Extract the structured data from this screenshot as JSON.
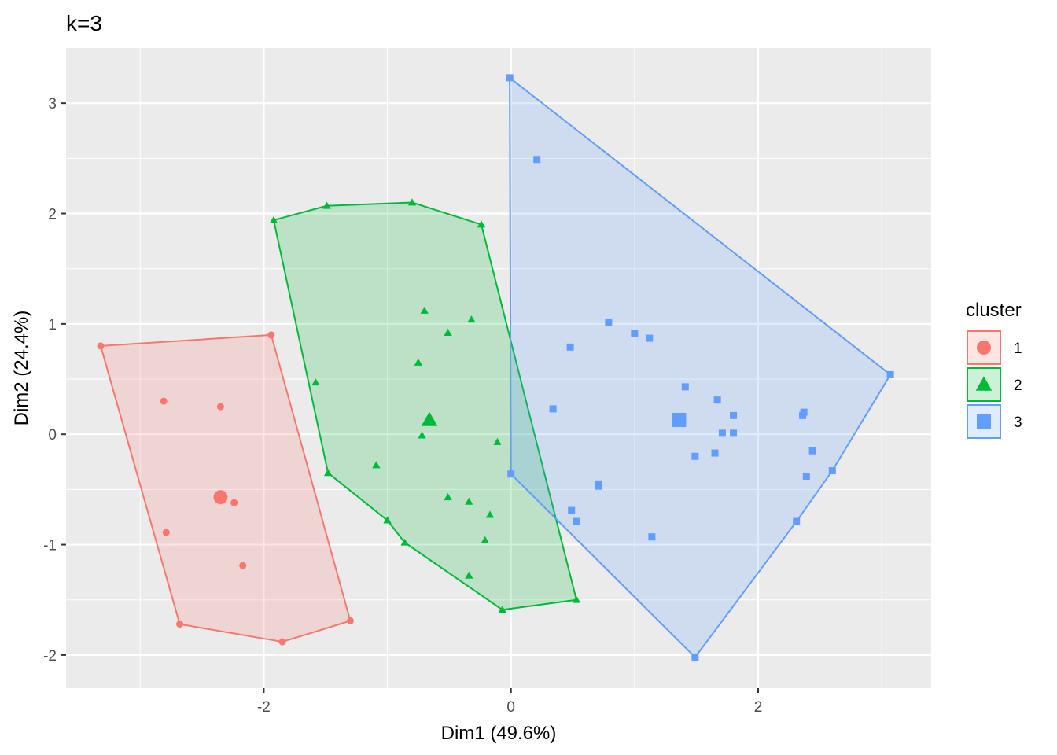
{
  "chart_data": {
    "type": "scatter",
    "title": "k=3",
    "xlabel": "Dim1 (49.6%)",
    "ylabel": "Dim2 (24.4%)",
    "xlim": [
      -3.6,
      3.4
    ],
    "ylim": [
      -2.3,
      3.5
    ],
    "x_ticks": [
      -2,
      0,
      2
    ],
    "x_tick_labels": [
      "-2",
      "0",
      "2"
    ],
    "y_ticks": [
      -2,
      -1,
      0,
      1,
      2,
      3
    ],
    "y_tick_labels": [
      "-2",
      "-1",
      "0",
      "1",
      "2",
      "3"
    ],
    "grid": true,
    "legend": {
      "title": "cluster",
      "position": "right"
    },
    "series": [
      {
        "name": "1",
        "color": "#F8766D",
        "shape": "circle",
        "points": [
          [
            -3.32,
            0.8
          ],
          [
            -1.94,
            0.9
          ],
          [
            -2.81,
            0.3
          ],
          [
            -2.35,
            0.25
          ],
          [
            -2.24,
            -0.62
          ],
          [
            -2.79,
            -0.89
          ],
          [
            -2.17,
            -1.19
          ],
          [
            -2.68,
            -1.72
          ],
          [
            -1.3,
            -1.69
          ],
          [
            -1.85,
            -1.88
          ]
        ],
        "center": [
          -2.35,
          -0.57
        ],
        "hull": [
          [
            -3.32,
            0.8
          ],
          [
            -1.94,
            0.9
          ],
          [
            -1.3,
            -1.69
          ],
          [
            -1.85,
            -1.88
          ],
          [
            -2.68,
            -1.72
          ]
        ]
      },
      {
        "name": "2",
        "color": "#00BA38",
        "shape": "triangle",
        "points": [
          [
            -1.92,
            1.94
          ],
          [
            -1.49,
            2.07
          ],
          [
            -0.8,
            2.1
          ],
          [
            -0.24,
            1.9
          ],
          [
            -0.7,
            1.12
          ],
          [
            -0.32,
            1.04
          ],
          [
            -0.51,
            0.92
          ],
          [
            -0.75,
            0.65
          ],
          [
            -1.58,
            0.47
          ],
          [
            -0.72,
            -0.01
          ],
          [
            -0.11,
            -0.07
          ],
          [
            -1.09,
            -0.28
          ],
          [
            -1.48,
            -0.35
          ],
          [
            -0.51,
            -0.57
          ],
          [
            -0.34,
            -0.61
          ],
          [
            -0.17,
            -0.73
          ],
          [
            -1.0,
            -0.78
          ],
          [
            -0.21,
            -0.96
          ],
          [
            -0.86,
            -0.98
          ],
          [
            -0.34,
            -1.28
          ],
          [
            -0.07,
            -1.59
          ],
          [
            0.53,
            -1.5
          ]
        ],
        "center": [
          -0.66,
          0.13
        ],
        "hull": [
          [
            -1.92,
            1.94
          ],
          [
            -1.49,
            2.07
          ],
          [
            -0.8,
            2.1
          ],
          [
            -0.24,
            1.9
          ],
          [
            0.53,
            -1.5
          ],
          [
            -0.07,
            -1.59
          ],
          [
            -0.86,
            -0.98
          ],
          [
            -1.0,
            -0.78
          ],
          [
            -1.48,
            -0.35
          ]
        ]
      },
      {
        "name": "3",
        "color": "#619CFF",
        "shape": "square",
        "points": [
          [
            -0.01,
            3.23
          ],
          [
            0.21,
            2.49
          ],
          [
            0.79,
            1.01
          ],
          [
            1.0,
            0.91
          ],
          [
            1.12,
            0.87
          ],
          [
            0.48,
            0.79
          ],
          [
            1.41,
            0.43
          ],
          [
            3.07,
            0.54
          ],
          [
            0.34,
            0.23
          ],
          [
            1.67,
            0.31
          ],
          [
            1.8,
            0.17
          ],
          [
            2.37,
            0.2
          ],
          [
            2.36,
            0.17
          ],
          [
            1.71,
            0.01
          ],
          [
            1.8,
            0.01
          ],
          [
            1.49,
            -0.2
          ],
          [
            1.65,
            -0.17
          ],
          [
            2.44,
            -0.15
          ],
          [
            2.6,
            -0.33
          ],
          [
            2.39,
            -0.38
          ],
          [
            0.0,
            -0.36
          ],
          [
            0.71,
            -0.45
          ],
          [
            0.71,
            -0.47
          ],
          [
            0.49,
            -0.69
          ],
          [
            0.53,
            -0.79
          ],
          [
            2.31,
            -0.79
          ],
          [
            1.14,
            -0.93
          ],
          [
            1.49,
            -2.02
          ]
        ],
        "center": [
          1.36,
          0.13
        ],
        "hull": [
          [
            -0.01,
            3.23
          ],
          [
            3.07,
            0.54
          ],
          [
            2.6,
            -0.33
          ],
          [
            2.31,
            -0.79
          ],
          [
            1.49,
            -2.02
          ],
          [
            0.0,
            -0.36
          ]
        ]
      }
    ]
  }
}
